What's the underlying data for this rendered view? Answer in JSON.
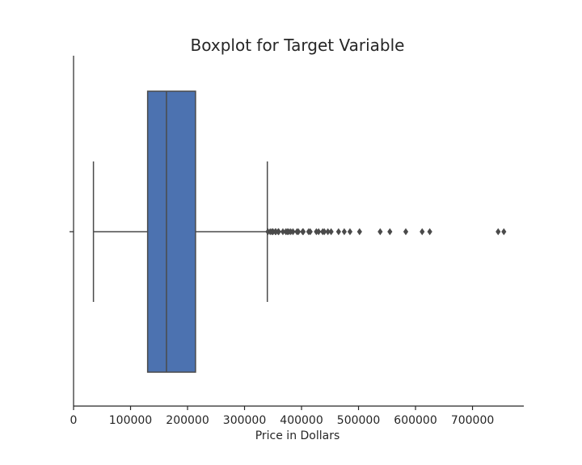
{
  "chart_data": {
    "type": "boxplot",
    "orientation": "horizontal",
    "title": "Boxplot for Target Variable",
    "xlabel": "Price in Dollars",
    "ylabel": "",
    "xlim": [
      0,
      790000
    ],
    "x_ticks": [
      0,
      100000,
      200000,
      300000,
      400000,
      500000,
      600000,
      700000
    ],
    "x_tick_labels": [
      "0",
      "100000",
      "200000",
      "300000",
      "400000",
      "500000",
      "600000",
      "700000"
    ],
    "grid": false,
    "colors": {
      "box_fill": "#4c72b0",
      "line": "#4a4a4a",
      "axis": "#262626"
    },
    "box": {
      "whisker_low": 34900,
      "q1": 129975,
      "median": 163000,
      "q3": 214000,
      "whisker_high": 340000
    },
    "outliers": [
      341000,
      345000,
      348000,
      350000,
      354000,
      355000,
      359100,
      360000,
      367294,
      372500,
      375000,
      377500,
      381000,
      385000,
      392000,
      394432,
      402000,
      403000,
      412500,
      415298,
      426000,
      430000,
      437154,
      440000,
      446261,
      451950,
      465000,
      475000,
      485000,
      501837,
      538000,
      555000,
      582933,
      611657,
      625000,
      745000,
      755000
    ]
  }
}
